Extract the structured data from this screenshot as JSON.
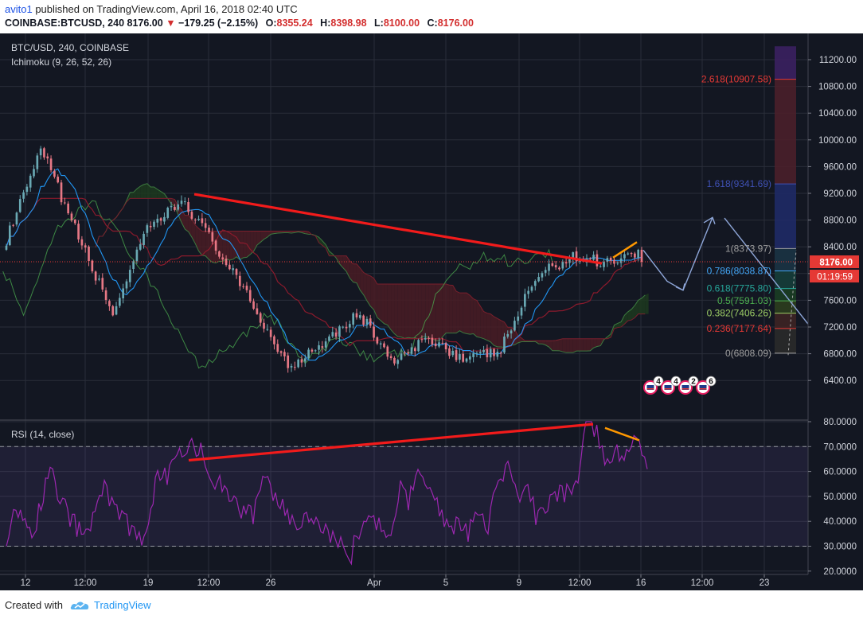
{
  "header": {
    "user": "avito1",
    "published": " published on TradingView.com, April 16, 2018 02:40 UTC",
    "symbol": "COINBASE:BTCUSD, 240",
    "last": "8176.00",
    "change": "−179.25 (−2.15%)",
    "o_label": "O:",
    "o": "8355.24",
    "h_label": "H:",
    "h": "8398.98",
    "l_label": "L:",
    "l": "8100.00",
    "c_label": "C:",
    "c": "8176.00"
  },
  "chart_data": [
    {
      "type": "candlestick",
      "title": "BTC/USD, 240, COINBASE",
      "indicator": "Ichimoku (9, 26, 52, 26)",
      "ylim": [
        6200,
        11400
      ],
      "y_ticks": [
        "11200.00",
        "10800.00",
        "10400.00",
        "10000.00",
        "9600.00",
        "9200.00",
        "8800.00",
        "8400.00",
        "8000.00",
        "7600.00",
        "7200.00",
        "6800.00",
        "6400.00"
      ],
      "x_ticks": [
        "12",
        "12:00",
        "19",
        "12:00",
        "26",
        "Apr",
        "5",
        "9",
        "12:00",
        "16",
        "12:00",
        "23"
      ],
      "price_label": "8176.00",
      "countdown": "01:19:59",
      "candle_knots": [
        [
          8500,
          8000
        ],
        [
          9850,
          8300
        ],
        [
          8600,
          8300
        ],
        [
          7400,
          7550
        ],
        [
          8650,
          8300
        ],
        [
          9100,
          8700
        ],
        [
          8350,
          8250
        ],
        [
          7500,
          7400
        ],
        [
          6600,
          6900
        ],
        [
          7000,
          7200
        ],
        [
          7400,
          7300
        ],
        [
          6650,
          6800
        ],
        [
          7050,
          7100
        ],
        [
          6700,
          6850
        ],
        [
          6850,
          6900
        ],
        [
          7950,
          7800
        ],
        [
          8250,
          8300
        ],
        [
          8180,
          8050
        ],
        [
          8330,
          8176
        ]
      ],
      "fibonacci": [
        {
          "level": "2.618",
          "price": 10907.58,
          "label": "2.618(10907.58)",
          "color": "#e53935"
        },
        {
          "level": "1.618",
          "price": 9341.69,
          "label": "1.618(9341.69)",
          "color": "#3f51b5"
        },
        {
          "level": "1",
          "price": 8373.97,
          "label": "1(8373.97)",
          "color": "#9e9e9e"
        },
        {
          "level": "0.786",
          "price": 8038.87,
          "label": "0.786(8038.87)",
          "color": "#42a5f5"
        },
        {
          "level": "0.618",
          "price": 7775.8,
          "label": "0.618(7775.80)",
          "color": "#26a69a"
        },
        {
          "level": "0.5",
          "price": 7591.03,
          "label": "0.5(7591.03)",
          "color": "#4caf50"
        },
        {
          "level": "0.382",
          "price": 7406.26,
          "label": "0.382(7406.26)",
          "color": "#9ccc65"
        },
        {
          "level": "0.236",
          "price": 7177.64,
          "label": "0.236(7177.64)",
          "color": "#e53935"
        },
        {
          "level": "0",
          "price": 6808.09,
          "label": "0(6808.09)",
          "color": "#9e9e9e"
        }
      ],
      "events": [
        "4",
        "4",
        "2",
        "6"
      ]
    },
    {
      "type": "line",
      "title": "RSI (14, close)",
      "ylim": [
        20,
        80
      ],
      "y_ticks": [
        "80.0000",
        "70.0000",
        "60.0000",
        "50.0000",
        "40.0000",
        "30.0000",
        "20.0000"
      ],
      "bands": [
        30,
        70
      ],
      "rsi_knots": [
        [
          0,
          30
        ],
        [
          12,
          45
        ],
        [
          32,
          34
        ],
        [
          55,
          60
        ],
        [
          80,
          41
        ],
        [
          100,
          33
        ],
        [
          120,
          54
        ],
        [
          145,
          42
        ],
        [
          170,
          30
        ],
        [
          190,
          57
        ],
        [
          205,
          59
        ],
        [
          230,
          73
        ],
        [
          250,
          65
        ],
        [
          265,
          55
        ],
        [
          280,
          52
        ],
        [
          295,
          45
        ],
        [
          310,
          42
        ],
        [
          325,
          60
        ],
        [
          335,
          50
        ],
        [
          350,
          45
        ],
        [
          365,
          40
        ],
        [
          380,
          42
        ],
        [
          395,
          38
        ],
        [
          410,
          35
        ],
        [
          420,
          30
        ],
        [
          430,
          22
        ],
        [
          440,
          34
        ],
        [
          455,
          42
        ],
        [
          468,
          38
        ],
        [
          480,
          32
        ],
        [
          495,
          55
        ],
        [
          505,
          47
        ],
        [
          520,
          62
        ],
        [
          535,
          52
        ],
        [
          550,
          42
        ],
        [
          565,
          38
        ],
        [
          580,
          36
        ],
        [
          595,
          42
        ],
        [
          605,
          37
        ],
        [
          615,
          55
        ],
        [
          630,
          63
        ],
        [
          645,
          50
        ],
        [
          655,
          58
        ],
        [
          665,
          40
        ],
        [
          680,
          47
        ],
        [
          695,
          51
        ],
        [
          710,
          52
        ],
        [
          718,
          53
        ],
        [
          722,
          68
        ],
        [
          728,
          80
        ],
        [
          735,
          77
        ],
        [
          745,
          73
        ],
        [
          755,
          64
        ],
        [
          770,
          68
        ],
        [
          785,
          69
        ],
        [
          795,
          72
        ],
        [
          805,
          61
        ]
      ]
    }
  ],
  "colors": {
    "up": "#6aa9b4",
    "down": "#e77885",
    "tenkan": "#2196f3",
    "kijun": "#8b1a2c",
    "chikou": "#4caf50",
    "cloud_bear": "#4a1c24",
    "cloud_bull": "#1d3a1e",
    "trend_red": "#f21b1b",
    "trend_orange": "#ff9800",
    "projection": "#8ea6d8",
    "rsi": "#9c27b0"
  },
  "footer": {
    "created": "Created with",
    "brand": "TradingView"
  }
}
